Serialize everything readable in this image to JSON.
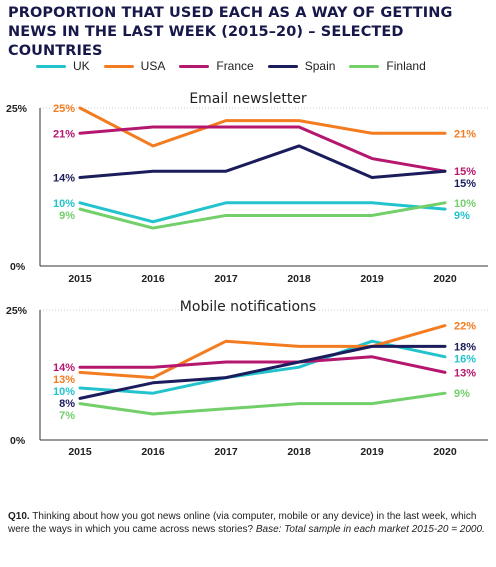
{
  "title": "PROPORTION THAT USED EACH AS A WAY OF GETTING NEWS IN THE LAST WEEK (2015–20) – SELECTED COUNTRIES",
  "legend": [
    {
      "name": "UK",
      "color": "#22c3cc"
    },
    {
      "name": "USA",
      "color": "#f47c20"
    },
    {
      "name": "France",
      "color": "#b5176e"
    },
    {
      "name": "Spain",
      "color": "#1b1c5c"
    },
    {
      "name": "Finland",
      "color": "#72cf6a"
    }
  ],
  "chart_data": [
    {
      "type": "line",
      "title": "Email newsletter",
      "x": [
        2015,
        2016,
        2017,
        2018,
        2019,
        2020
      ],
      "ylim": [
        0,
        25
      ],
      "yticks": [
        "25%",
        "0%"
      ],
      "xticks": [
        "2015",
        "2016",
        "2017",
        "2018",
        "2019",
        "2020"
      ],
      "series": [
        {
          "name": "UK",
          "color": "#22c3cc",
          "values": [
            10,
            7,
            10,
            10,
            10,
            9
          ],
          "start_label": "10%",
          "end_label": "9%"
        },
        {
          "name": "USA",
          "color": "#f47c20",
          "values": [
            25,
            19,
            23,
            23,
            21,
            21
          ],
          "start_label": "25%",
          "end_label": "21%"
        },
        {
          "name": "France",
          "color": "#b5176e",
          "values": [
            21,
            22,
            22,
            22,
            17,
            15
          ],
          "start_label": "21%",
          "end_label": "15%"
        },
        {
          "name": "Spain",
          "color": "#1b1c5c",
          "values": [
            14,
            15,
            15,
            19,
            14,
            15
          ],
          "start_label": "14%",
          "end_label": "15%"
        },
        {
          "name": "Finland",
          "color": "#72cf6a",
          "values": [
            9,
            6,
            8,
            8,
            8,
            10
          ],
          "start_label": "9%",
          "end_label": "10%"
        }
      ]
    },
    {
      "type": "line",
      "title": "Mobile notifications",
      "x": [
        2015,
        2016,
        2017,
        2018,
        2019,
        2020
      ],
      "ylim": [
        0,
        25
      ],
      "yticks": [
        "25%",
        "0%"
      ],
      "xticks": [
        "2015",
        "2016",
        "2017",
        "2018",
        "2019",
        "2020"
      ],
      "series": [
        {
          "name": "UK",
          "color": "#22c3cc",
          "values": [
            10,
            9,
            12,
            14,
            19,
            16
          ],
          "start_label": "10%",
          "end_label": "16%"
        },
        {
          "name": "USA",
          "color": "#f47c20",
          "values": [
            13,
            12,
            19,
            18,
            18,
            22
          ],
          "start_label": "13%",
          "end_label": "22%"
        },
        {
          "name": "France",
          "color": "#b5176e",
          "values": [
            14,
            14,
            15,
            15,
            16,
            13
          ],
          "start_label": "14%",
          "end_label": "13%"
        },
        {
          "name": "Spain",
          "color": "#1b1c5c",
          "values": [
            8,
            11,
            12,
            15,
            18,
            18
          ],
          "start_label": "8%",
          "end_label": "18%"
        },
        {
          "name": "Finland",
          "color": "#72cf6a",
          "values": [
            7,
            5,
            6,
            7,
            7,
            9
          ],
          "start_label": "7%",
          "end_label": "9%"
        }
      ]
    }
  ],
  "footnote": {
    "q": "Q10.",
    "text": " Thinking about how you got news online (via computer, mobile or any device) in the last week, which were the ways in which you came across news stories? ",
    "base": "Base: Total sample in each market 2015-20 = 2000."
  }
}
